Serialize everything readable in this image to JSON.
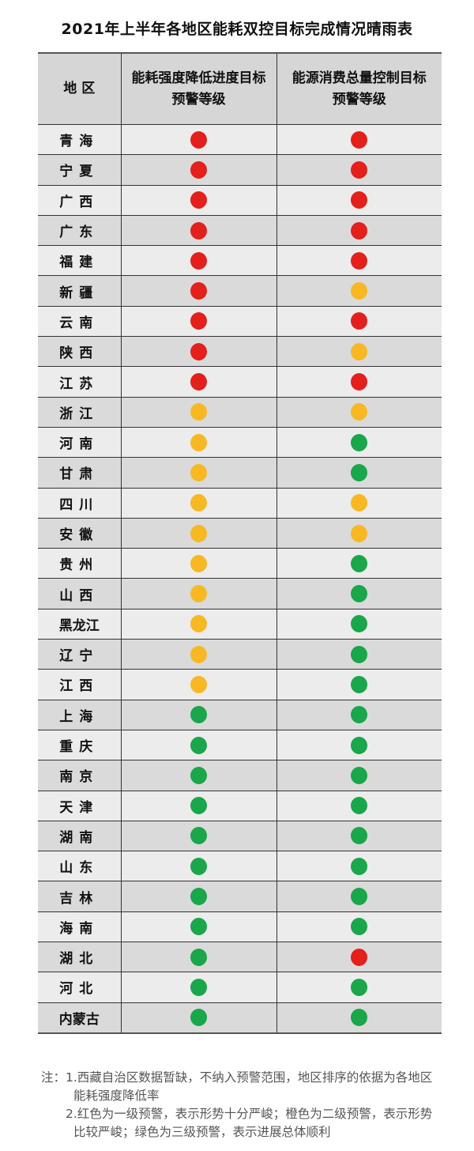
{
  "title": "2021年上半年各地区能耗双控目标完成情况晴雨表",
  "colors": {
    "red": "#e3201b",
    "orange": "#f7b824",
    "green": "#1aa64a"
  },
  "table": {
    "headers": [
      "地 区",
      "能耗强度降低进度目标\n预警等级",
      "能源消费总量控制目标\n预警等级"
    ],
    "rows": [
      {
        "region": "青海",
        "intensity": "red",
        "total": "red"
      },
      {
        "region": "宁夏",
        "intensity": "red",
        "total": "red"
      },
      {
        "region": "广西",
        "intensity": "red",
        "total": "red"
      },
      {
        "region": "广东",
        "intensity": "red",
        "total": "red"
      },
      {
        "region": "福建",
        "intensity": "red",
        "total": "red"
      },
      {
        "region": "新疆",
        "intensity": "red",
        "total": "orange"
      },
      {
        "region": "云南",
        "intensity": "red",
        "total": "red"
      },
      {
        "region": "陕西",
        "intensity": "red",
        "total": "orange"
      },
      {
        "region": "江苏",
        "intensity": "red",
        "total": "red"
      },
      {
        "region": "浙江",
        "intensity": "orange",
        "total": "orange"
      },
      {
        "region": "河南",
        "intensity": "orange",
        "total": "green"
      },
      {
        "region": "甘肃",
        "intensity": "orange",
        "total": "green"
      },
      {
        "region": "四川",
        "intensity": "orange",
        "total": "orange"
      },
      {
        "region": "安徽",
        "intensity": "orange",
        "total": "orange"
      },
      {
        "region": "贵州",
        "intensity": "orange",
        "total": "green"
      },
      {
        "region": "山西",
        "intensity": "orange",
        "total": "green"
      },
      {
        "region": "黑龙江",
        "intensity": "orange",
        "total": "green"
      },
      {
        "region": "辽宁",
        "intensity": "orange",
        "total": "green"
      },
      {
        "region": "江西",
        "intensity": "orange",
        "total": "green"
      },
      {
        "region": "上海",
        "intensity": "green",
        "total": "green"
      },
      {
        "region": "重庆",
        "intensity": "green",
        "total": "green"
      },
      {
        "region": "南京",
        "intensity": "green",
        "total": "green"
      },
      {
        "region": "天津",
        "intensity": "green",
        "total": "green"
      },
      {
        "region": "湖南",
        "intensity": "green",
        "total": "green"
      },
      {
        "region": "山东",
        "intensity": "green",
        "total": "green"
      },
      {
        "region": "吉林",
        "intensity": "green",
        "total": "green"
      },
      {
        "region": "海南",
        "intensity": "green",
        "total": "green"
      },
      {
        "region": "湖北",
        "intensity": "green",
        "total": "red"
      },
      {
        "region": "河北",
        "intensity": "green",
        "total": "green"
      },
      {
        "region": "内蒙古",
        "intensity": "green",
        "total": "green"
      }
    ]
  },
  "notes": {
    "prefix": "注：",
    "items": [
      "1.西藏自治区数据暂缺，不纳入预警范围，地区排序的依据为各地区能耗强度降低率",
      "2.红色为一级预警，表示形势十分严峻；橙色为二级预警，表示形势比较严峻；绿色为三级预警，表示进展总体顺利"
    ]
  }
}
